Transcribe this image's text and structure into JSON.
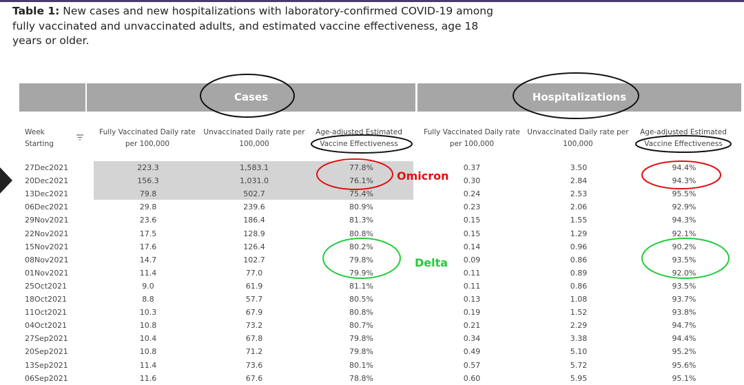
{
  "caption": {
    "label": "Table 1:",
    "text": "New cases and new hospitalizations with laboratory-confirmed COVID-19 among fully vaccinated and unvaccinated adults, and estimated vaccine effectiveness, age 18 years or older."
  },
  "groups": {
    "cases": "Cases",
    "hospitalizations": "Hospitalizations"
  },
  "headers": {
    "week_line1": "Week",
    "week_line2": "Starting",
    "cases_fv": "Fully Vaccinated Daily rate per 100,000",
    "cases_uv": "Unvaccinated Daily rate per 100,000",
    "cases_ve_line1": "Age-adjusted Estimated",
    "cases_ve_line2": "Vaccine Effectiveness",
    "hosp_fv": "Fully Vaccinated Daily rate per 100,000",
    "hosp_uv": "Unvaccinated Daily rate per 100,000",
    "hosp_ve_line1": "Age-adjusted Estimated",
    "hosp_ve_line2": "Vaccine Effectiveness"
  },
  "rows": [
    [
      "27Dec2021",
      "223.3",
      "1,583.1",
      "77.8%",
      "0.37",
      "3.50",
      "94.4%"
    ],
    [
      "20Dec2021",
      "156.3",
      "1,031.0",
      "76.1%",
      "0.30",
      "2.84",
      "94.3%"
    ],
    [
      "13Dec2021",
      "79.8",
      "502.7",
      "75.4%",
      "0.24",
      "2.53",
      "95.5%"
    ],
    [
      "06Dec2021",
      "29.8",
      "239.6",
      "80.9%",
      "0.23",
      "2.06",
      "92.9%"
    ],
    [
      "29Nov2021",
      "23.6",
      "186.4",
      "81.3%",
      "0.15",
      "1.55",
      "94.3%"
    ],
    [
      "22Nov2021",
      "17.5",
      "128.9",
      "80.8%",
      "0.15",
      "1.29",
      "92.1%"
    ],
    [
      "15Nov2021",
      "17.6",
      "126.4",
      "80.2%",
      "0.14",
      "0.96",
      "90.2%"
    ],
    [
      "08Nov2021",
      "14.7",
      "102.7",
      "79.8%",
      "0.09",
      "0.86",
      "93.5%"
    ],
    [
      "01Nov2021",
      "11.4",
      "77.0",
      "79.9%",
      "0.11",
      "0.89",
      "92.0%"
    ],
    [
      "25Oct2021",
      "9.0",
      "61.9",
      "81.1%",
      "0.11",
      "0.86",
      "93.5%"
    ],
    [
      "18Oct2021",
      "8.8",
      "57.7",
      "80.5%",
      "0.13",
      "1.08",
      "93.7%"
    ],
    [
      "11Oct2021",
      "10.3",
      "67.9",
      "80.8%",
      "0.19",
      "1.52",
      "93.8%"
    ],
    [
      "04Oct2021",
      "10.8",
      "73.2",
      "80.7%",
      "0.21",
      "2.29",
      "94.7%"
    ],
    [
      "27Sep2021",
      "10.4",
      "67.8",
      "79.8%",
      "0.34",
      "3.38",
      "94.4%"
    ],
    [
      "20Sep2021",
      "10.8",
      "71.2",
      "79.8%",
      "0.49",
      "5.10",
      "95.2%"
    ],
    [
      "13Sep2021",
      "11.4",
      "73.6",
      "80.1%",
      "0.57",
      "5.72",
      "95.6%"
    ],
    [
      "06Sep2021",
      "11.6",
      "67.6",
      "78.8%",
      "0.60",
      "5.95",
      "95.1%"
    ]
  ],
  "annotations": {
    "omicron": "Omicron",
    "delta": "Delta"
  },
  "colors": {
    "header_band": "#a6a6a6",
    "shade": "#d4d4d4",
    "omicron_mark": "#e01010",
    "delta_mark": "#1fcc3a",
    "circle_black": "#111111"
  }
}
